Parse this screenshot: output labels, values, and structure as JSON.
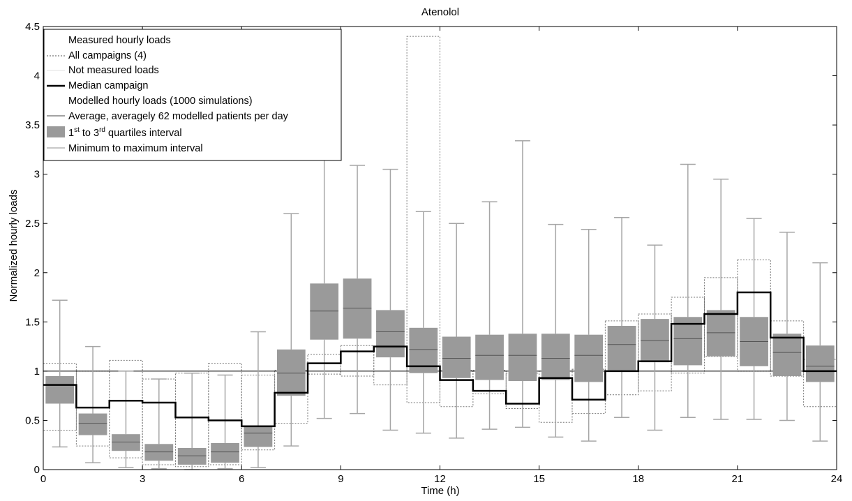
{
  "chart_data": {
    "type": "box",
    "title": "Atenolol",
    "xlabel": "Time (h)",
    "ylabel": "Normalized hourly loads",
    "xlim": [
      0,
      24
    ],
    "ylim": [
      0,
      4.5
    ],
    "xticks": [
      "0",
      "3",
      "6",
      "9",
      "12",
      "15",
      "18",
      "21",
      "24"
    ],
    "yticks": [
      "0",
      "0.5",
      "1",
      "1.5",
      "2",
      "2.5",
      "3",
      "3.5",
      "4",
      "4.5"
    ],
    "reference_line": 1,
    "legend": {
      "position": "top-left",
      "entries": [
        {
          "label": "Measured hourly loads",
          "style": "heading"
        },
        {
          "label": "All campaigns (4)",
          "style": "dotted"
        },
        {
          "label": "Not measured loads",
          "style": "light"
        },
        {
          "label": "Median campaign",
          "style": "thick"
        },
        {
          "label": "Modelled hourly loads (1000 simulations)",
          "style": "heading"
        },
        {
          "label": "Average, averagely 62 modelled patients per day",
          "style": "thin"
        },
        {
          "label": "1",
          "sup1": "st",
          "mid": " to 3",
          "sup2": "rd",
          "tail": " quartiles interval",
          "style": "box"
        },
        {
          "label": "Minimum to maximum interval",
          "style": "whisker"
        }
      ]
    },
    "colors": {
      "box_fill": "#9a9a9a",
      "whisker": "#a6a6a6",
      "median": "#000000",
      "campaign": "#777777"
    },
    "modelled_hourly": [
      {
        "hour": 0,
        "min": 0.23,
        "q1": 0.67,
        "median": 0.86,
        "q3": 0.95,
        "max": 1.72
      },
      {
        "hour": 1,
        "min": 0.07,
        "q1": 0.35,
        "median": 0.47,
        "q3": 0.57,
        "max": 1.25
      },
      {
        "hour": 2,
        "min": 0.02,
        "q1": 0.19,
        "median": 0.28,
        "q3": 0.36,
        "max": 1.0
      },
      {
        "hour": 3,
        "min": 0.01,
        "q1": 0.09,
        "median": 0.18,
        "q3": 0.26,
        "max": 0.92
      },
      {
        "hour": 4,
        "min": 0.0,
        "q1": 0.05,
        "median": 0.14,
        "q3": 0.22,
        "max": 0.98
      },
      {
        "hour": 5,
        "min": 0.01,
        "q1": 0.07,
        "median": 0.18,
        "q3": 0.27,
        "max": 0.96
      },
      {
        "hour": 6,
        "min": 0.02,
        "q1": 0.23,
        "median": 0.37,
        "q3": 0.44,
        "max": 1.4
      },
      {
        "hour": 7,
        "min": 0.24,
        "q1": 0.75,
        "median": 0.98,
        "q3": 1.22,
        "max": 2.6
      },
      {
        "hour": 8,
        "min": 0.52,
        "q1": 1.32,
        "median": 1.61,
        "q3": 1.89,
        "max": 3.15
      },
      {
        "hour": 9,
        "min": 0.57,
        "q1": 1.33,
        "median": 1.64,
        "q3": 1.94,
        "max": 3.09
      },
      {
        "hour": 10,
        "min": 0.4,
        "q1": 1.14,
        "median": 1.4,
        "q3": 1.62,
        "max": 3.05
      },
      {
        "hour": 11,
        "min": 0.37,
        "q1": 0.98,
        "median": 1.22,
        "q3": 1.44,
        "max": 2.62
      },
      {
        "hour": 12,
        "min": 0.32,
        "q1": 0.93,
        "median": 1.13,
        "q3": 1.35,
        "max": 2.5
      },
      {
        "hour": 13,
        "min": 0.41,
        "q1": 0.91,
        "median": 1.16,
        "q3": 1.37,
        "max": 2.72
      },
      {
        "hour": 14,
        "min": 0.43,
        "q1": 0.9,
        "median": 1.16,
        "q3": 1.38,
        "max": 3.34
      },
      {
        "hour": 15,
        "min": 0.33,
        "q1": 0.91,
        "median": 1.13,
        "q3": 1.38,
        "max": 2.49
      },
      {
        "hour": 16,
        "min": 0.29,
        "q1": 0.89,
        "median": 1.16,
        "q3": 1.37,
        "max": 2.44
      },
      {
        "hour": 17,
        "min": 0.53,
        "q1": 1.01,
        "median": 1.27,
        "q3": 1.46,
        "max": 2.56
      },
      {
        "hour": 18,
        "min": 0.4,
        "q1": 1.09,
        "median": 1.31,
        "q3": 1.53,
        "max": 2.28
      },
      {
        "hour": 19,
        "min": 0.53,
        "q1": 1.06,
        "median": 1.33,
        "q3": 1.55,
        "max": 3.1
      },
      {
        "hour": 20,
        "min": 0.51,
        "q1": 1.15,
        "median": 1.39,
        "q3": 1.62,
        "max": 2.95
      },
      {
        "hour": 21,
        "min": 0.51,
        "q1": 1.05,
        "median": 1.3,
        "q3": 1.55,
        "max": 2.55
      },
      {
        "hour": 22,
        "min": 0.5,
        "q1": 0.95,
        "median": 1.19,
        "q3": 1.38,
        "max": 2.41
      },
      {
        "hour": 23,
        "min": 0.29,
        "q1": 0.89,
        "median": 1.05,
        "q3": 1.26,
        "max": 2.1
      }
    ],
    "median_campaign": [
      0.86,
      0.63,
      0.7,
      0.68,
      0.53,
      0.5,
      0.44,
      0.78,
      1.08,
      1.2,
      1.25,
      1.05,
      0.91,
      0.8,
      0.67,
      0.93,
      0.71,
      1.0,
      1.1,
      1.48,
      1.58,
      1.8,
      1.34,
      1.0
    ],
    "all_campaigns": {
      "low": [
        0.4,
        0.24,
        0.12,
        0.05,
        0.03,
        0.05,
        0.2,
        0.47,
        0.97,
        0.95,
        0.86,
        0.68,
        0.64,
        0.77,
        0.62,
        0.48,
        0.57,
        0.76,
        0.8,
        0.98,
        1.15,
        1.0,
        0.95,
        0.64
      ],
      "high": [
        1.08,
        1.0,
        1.11,
        0.92,
        0.98,
        1.08,
        0.96,
        1.01,
        1.17,
        1.26,
        1.25,
        4.4,
        1.01,
        1.01,
        0.98,
        1.0,
        1.02,
        1.51,
        1.58,
        1.75,
        1.95,
        2.13,
        1.51,
        1.12
      ]
    }
  }
}
